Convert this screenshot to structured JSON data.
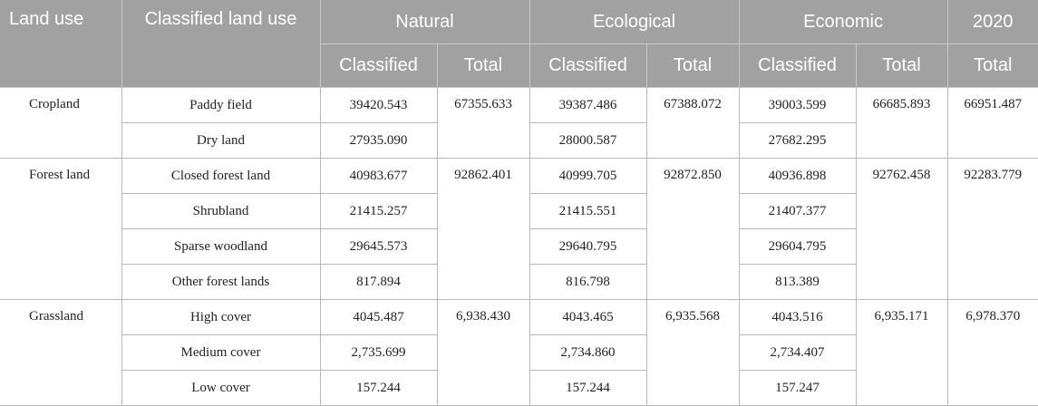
{
  "header": {
    "land_use": "Land use",
    "classified_land_use": "Classified land use",
    "natural": "Natural",
    "ecological": "Ecological",
    "economic": "Economic",
    "year": "2020",
    "classified": "Classified",
    "total": "Total"
  },
  "groups": [
    {
      "name": "Cropland",
      "natural_total": "67355.633",
      "ecological_total": "67388.072",
      "economic_total": "66685.893",
      "y2020_total": "66951.487",
      "rows": [
        {
          "sub": "Paddy field",
          "natural": "39420.543",
          "ecological": "39387.486",
          "economic": "39003.599"
        },
        {
          "sub": "Dry land",
          "natural": "27935.090",
          "ecological": "28000.587",
          "economic": "27682.295"
        }
      ]
    },
    {
      "name": "Forest land",
      "natural_total": "92862.401",
      "ecological_total": "92872.850",
      "economic_total": "92762.458",
      "y2020_total": "92283.779",
      "rows": [
        {
          "sub": "Closed forest land",
          "natural": "40983.677",
          "ecological": "40999.705",
          "economic": "40936.898"
        },
        {
          "sub": "Shrubland",
          "natural": "21415.257",
          "ecological": "21415.551",
          "economic": "21407.377"
        },
        {
          "sub": "Sparse woodland",
          "natural": "29645.573",
          "ecological": "29640.795",
          "economic": "29604.795"
        },
        {
          "sub": "Other forest lands",
          "natural": "817.894",
          "ecological": "816.798",
          "economic": "813.389"
        }
      ]
    },
    {
      "name": "Grassland",
      "natural_total": "6,938.430",
      "ecological_total": "6,935.568",
      "economic_total": "6,935.171",
      "y2020_total": "6,978.370",
      "rows": [
        {
          "sub": "High cover",
          "natural": "4045.487",
          "ecological": "4043.465",
          "economic": "4043.516"
        },
        {
          "sub": "Medium cover",
          "natural": "2,735.699",
          "ecological": "2,734.860",
          "economic": "2,734.407"
        },
        {
          "sub": "Low cover",
          "natural": "157.244",
          "ecological": "157.244",
          "economic": "157.247"
        }
      ]
    }
  ]
}
